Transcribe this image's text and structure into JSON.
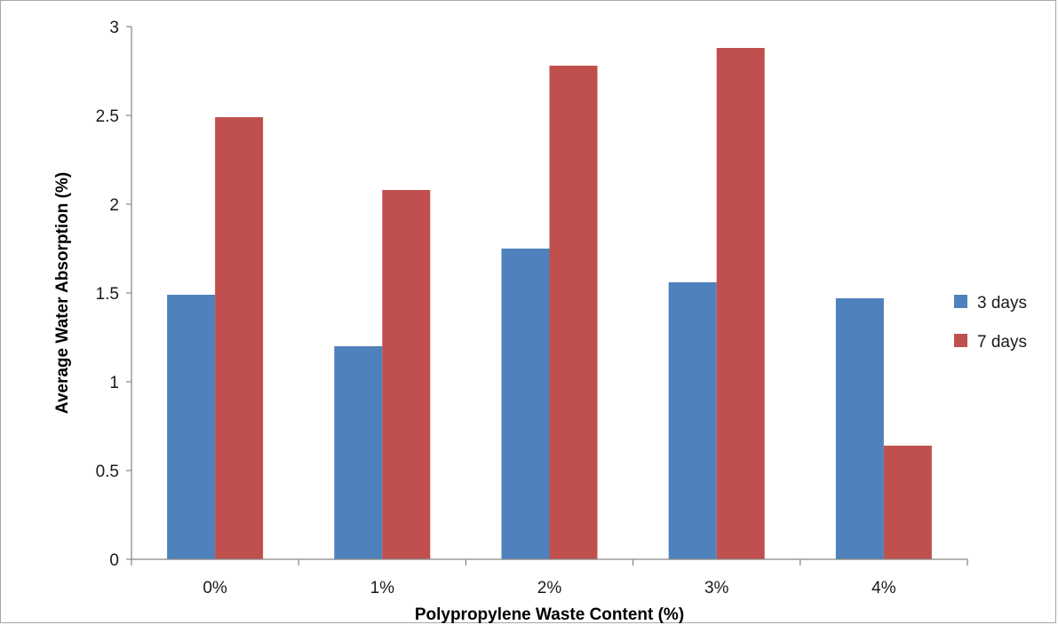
{
  "chart_data": {
    "type": "bar",
    "categories": [
      "0%",
      "1%",
      "2%",
      "3%",
      "4%"
    ],
    "series": [
      {
        "name": "3 days",
        "values": [
          1.49,
          1.2,
          1.75,
          1.56,
          1.47
        ],
        "color": "#4f81bd"
      },
      {
        "name": "7 days",
        "values": [
          2.49,
          2.08,
          2.78,
          2.88,
          0.64
        ],
        "color": "#c0504d"
      }
    ],
    "xlabel": "Polypropylene Waste Content (%)",
    "ylabel": "Average Water Absorption (%)",
    "ylim": [
      0,
      3
    ],
    "yticks": [
      "0",
      "0.5",
      "1",
      "1.5",
      "2",
      "2.5",
      "3"
    ],
    "grid": false,
    "legend_position": "right"
  }
}
